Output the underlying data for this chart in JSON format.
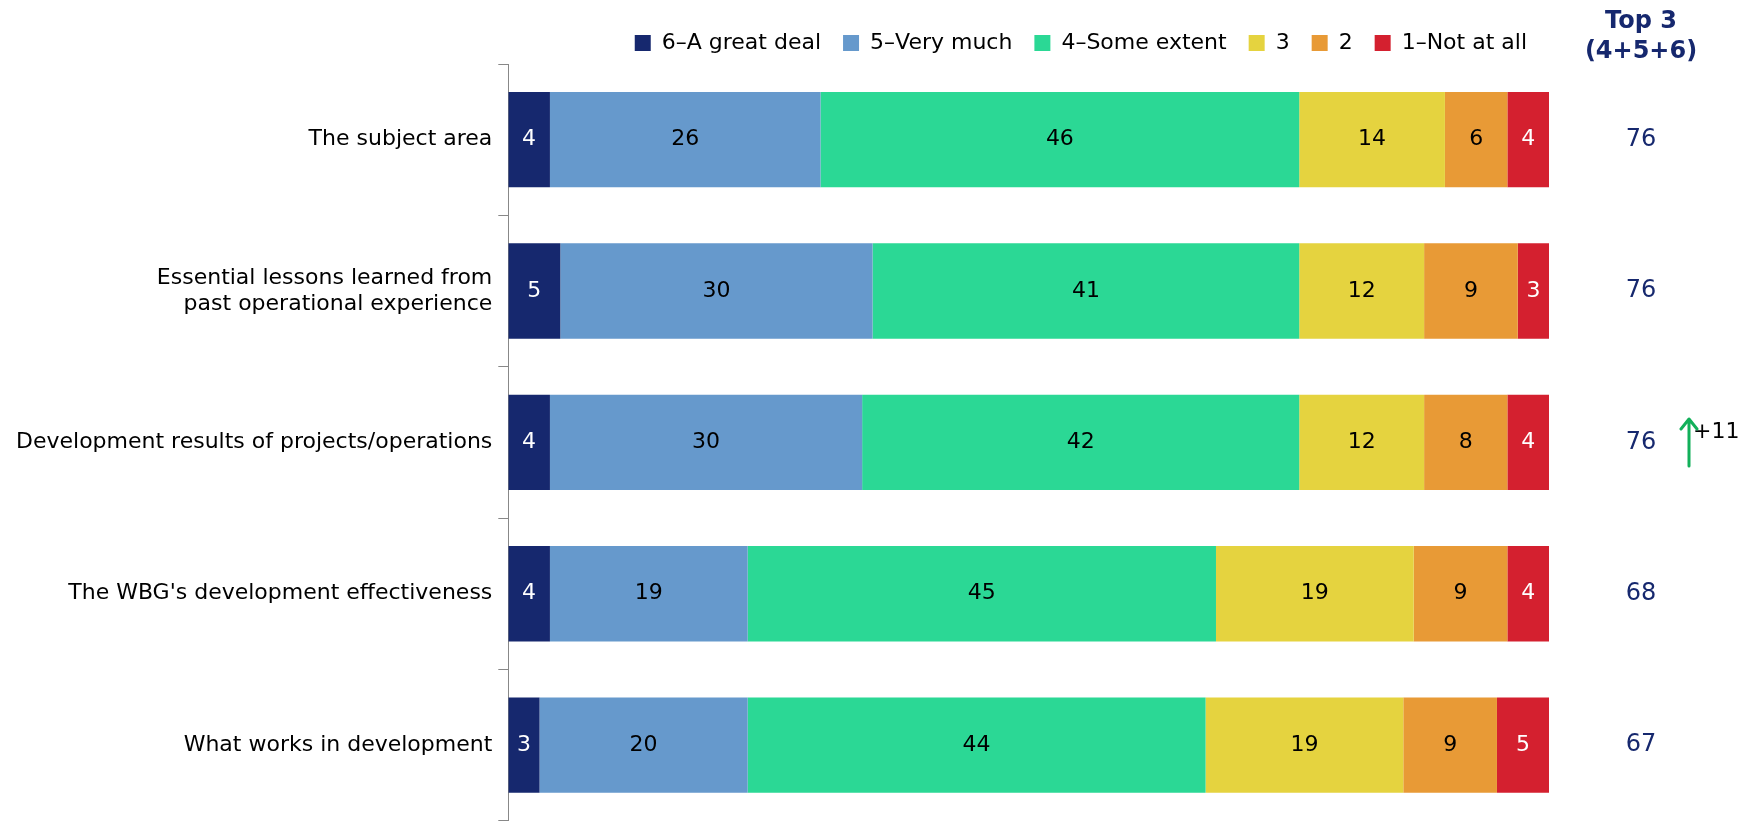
{
  "chart_data": {
    "type": "bar",
    "orientation": "horizontal",
    "stacked": true,
    "data_labels": true,
    "legend": "top",
    "tick_labels": "y",
    "grid": false,
    "categories": [
      "The subject area",
      "Essential lessons learned from past operational experience",
      "Development results of projects/operations",
      "The WBG's development effectiveness",
      "What works in development"
    ],
    "xlim": [
      0,
      100
    ],
    "series": [
      {
        "name": "6–A great deal",
        "color": "#16286e",
        "values": [
          4,
          5,
          4,
          4,
          3
        ]
      },
      {
        "name": "5–Very much",
        "color": "#6699cc",
        "values": [
          26,
          30,
          30,
          19,
          20
        ]
      },
      {
        "name": "4–Some extent",
        "color": "#2bd895",
        "values": [
          46,
          41,
          42,
          45,
          44
        ]
      },
      {
        "name": "3",
        "color": "#e5d33f",
        "values": [
          14,
          12,
          12,
          19,
          19
        ]
      },
      {
        "name": "2",
        "color": "#e89a36",
        "values": [
          6,
          9,
          8,
          9,
          9
        ]
      },
      {
        "name": "1–Not at all",
        "color": "#d4202f",
        "values": [
          4,
          3,
          4,
          4,
          5
        ]
      }
    ],
    "annotations": [
      "Top 3\n(4+5+6)",
      "76",
      "76",
      "76",
      "68",
      "67",
      "+11"
    ]
  }
}
